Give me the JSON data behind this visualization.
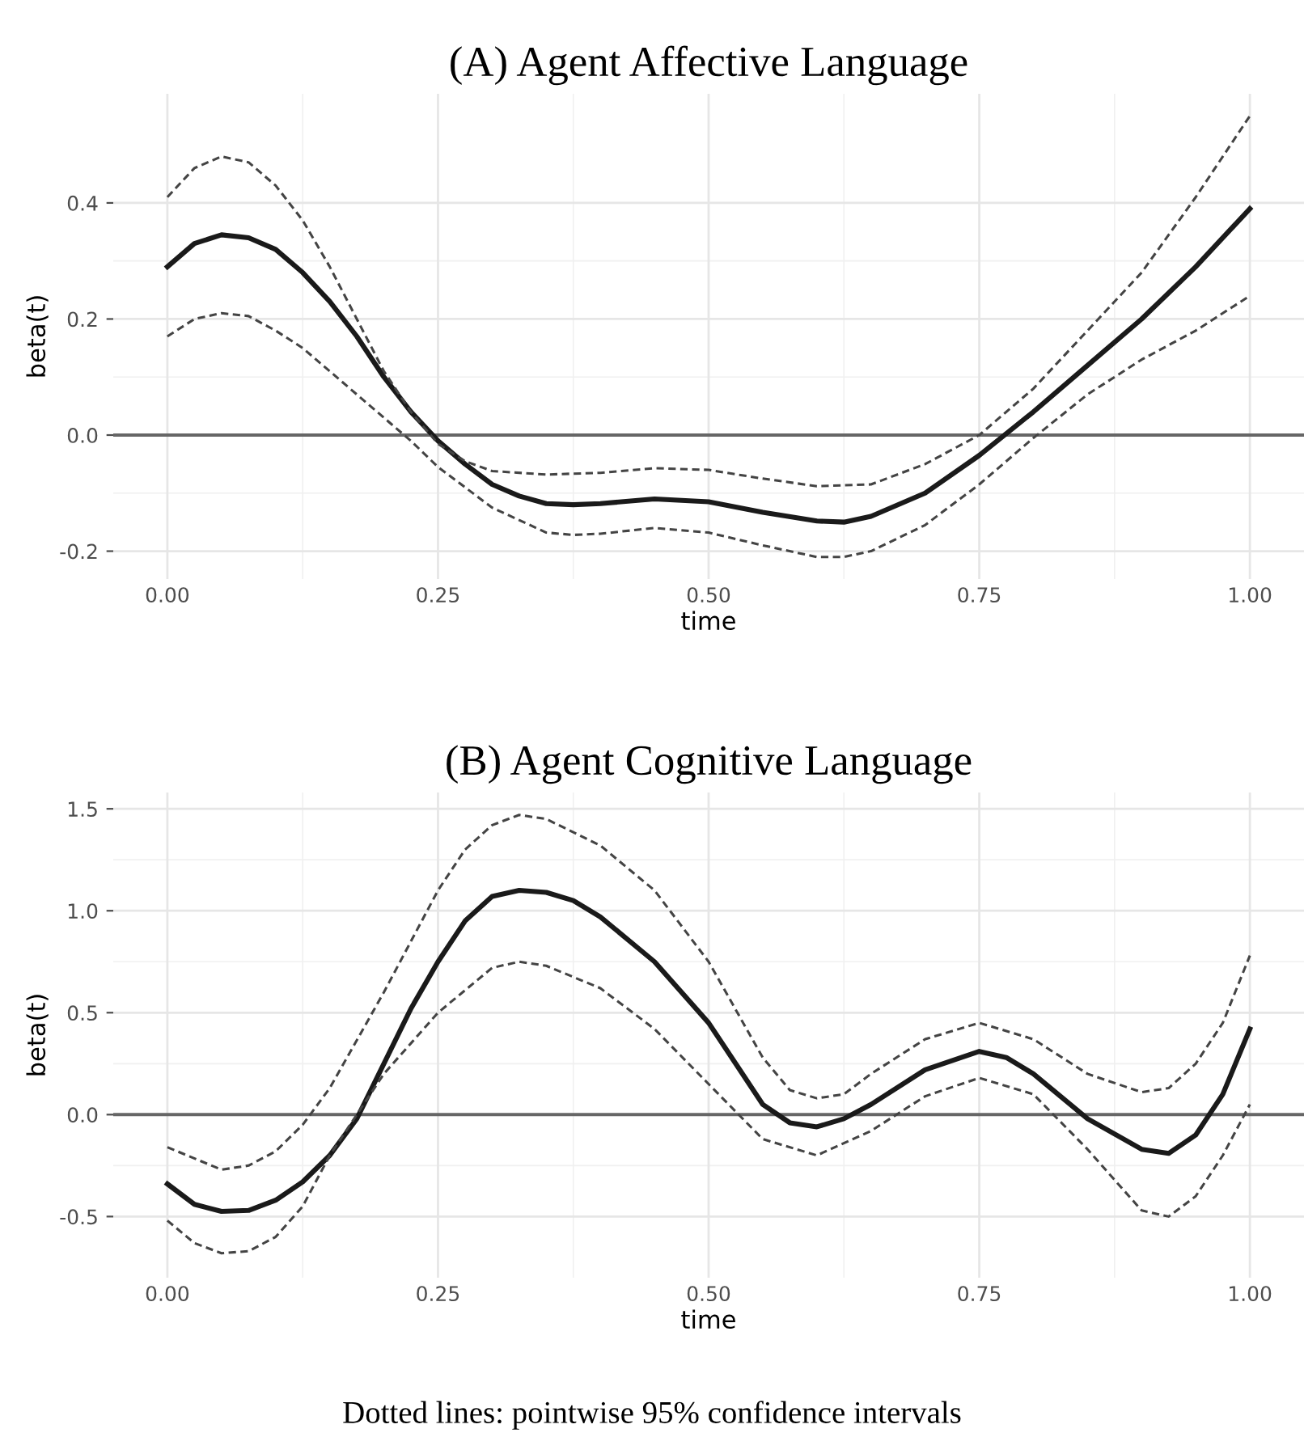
{
  "chart_data": [
    {
      "type": "line",
      "title": "(A) Agent Affective Language",
      "xlabel": "time",
      "ylabel": "beta(t)",
      "xlim": [
        -0.05,
        1.05
      ],
      "xticks": [
        {
          "value": 0,
          "label": "0.00"
        },
        {
          "value": 0.25,
          "label": "0.25"
        },
        {
          "value": 0.5,
          "label": "0.50"
        },
        {
          "value": 0.75,
          "label": "0.75"
        },
        {
          "value": 1,
          "label": "1.00"
        }
      ],
      "ylim": [
        -0.248,
        0.588
      ],
      "yticks": [
        {
          "value": -0.2,
          "label": "-0.2"
        },
        {
          "value": 0,
          "label": "0.0"
        },
        {
          "value": 0.2,
          "label": "0.2"
        },
        {
          "value": 0.4,
          "label": "0.4"
        }
      ],
      "grid": true,
      "legend": false,
      "ref_lines": [
        {
          "axis": "y",
          "value": 0,
          "color": "#666666"
        }
      ],
      "series": [
        {
          "color": "#1a1a1a",
          "line_style": "solid",
          "x": [
            0,
            0.025,
            0.05,
            0.075,
            0.1,
            0.125,
            0.15,
            0.175,
            0.2,
            0.225,
            0.25,
            0.275,
            0.3,
            0.325,
            0.35,
            0.375,
            0.4,
            0.45,
            0.5,
            0.55,
            0.6,
            0.625,
            0.65,
            0.7,
            0.75,
            0.8,
            0.85,
            0.9,
            0.95,
            1.0
          ],
          "values": [
            0.29,
            0.33,
            0.345,
            0.34,
            0.32,
            0.28,
            0.23,
            0.17,
            0.1,
            0.04,
            -0.01,
            -0.05,
            -0.085,
            -0.105,
            -0.118,
            -0.12,
            -0.118,
            -0.11,
            -0.115,
            -0.133,
            -0.148,
            -0.15,
            -0.14,
            -0.1,
            -0.035,
            0.04,
            0.12,
            0.2,
            0.29,
            0.39
          ]
        },
        {
          "color": "#444444",
          "line_style": "dashed",
          "x": [
            0,
            0.025,
            0.05,
            0.075,
            0.1,
            0.125,
            0.15,
            0.175,
            0.2,
            0.225,
            0.25,
            0.275,
            0.3,
            0.35,
            0.4,
            0.45,
            0.5,
            0.55,
            0.6,
            0.65,
            0.7,
            0.75,
            0.8,
            0.85,
            0.9,
            0.95,
            1.0
          ],
          "values": [
            0.41,
            0.46,
            0.48,
            0.47,
            0.43,
            0.37,
            0.29,
            0.2,
            0.11,
            0.04,
            -0.015,
            -0.045,
            -0.062,
            -0.068,
            -0.065,
            -0.057,
            -0.06,
            -0.075,
            -0.088,
            -0.085,
            -0.05,
            0.0,
            0.08,
            0.18,
            0.28,
            0.41,
            0.55
          ]
        },
        {
          "color": "#444444",
          "line_style": "dashed",
          "x": [
            0,
            0.025,
            0.05,
            0.075,
            0.1,
            0.125,
            0.15,
            0.2,
            0.225,
            0.25,
            0.3,
            0.35,
            0.375,
            0.4,
            0.45,
            0.5,
            0.55,
            0.6,
            0.625,
            0.65,
            0.7,
            0.75,
            0.8,
            0.85,
            0.9,
            0.95,
            1.0
          ],
          "values": [
            0.17,
            0.2,
            0.21,
            0.205,
            0.18,
            0.15,
            0.11,
            0.03,
            -0.01,
            -0.055,
            -0.125,
            -0.168,
            -0.172,
            -0.17,
            -0.16,
            -0.168,
            -0.19,
            -0.21,
            -0.21,
            -0.2,
            -0.155,
            -0.085,
            -0.005,
            0.07,
            0.13,
            0.18,
            0.24
          ]
        }
      ]
    },
    {
      "type": "line",
      "title": "(B) Agent Cognitive Language",
      "xlabel": "time",
      "ylabel": "beta(t)",
      "xlim": [
        -0.05,
        1.05
      ],
      "xticks": [
        {
          "value": 0,
          "label": "0.00"
        },
        {
          "value": 0.25,
          "label": "0.25"
        },
        {
          "value": 0.5,
          "label": "0.50"
        },
        {
          "value": 0.75,
          "label": "0.75"
        },
        {
          "value": 1,
          "label": "1.00"
        }
      ],
      "ylim": [
        -0.8,
        1.58
      ],
      "yticks": [
        {
          "value": -0.5,
          "label": "-0.5"
        },
        {
          "value": 0,
          "label": "0.0"
        },
        {
          "value": 0.5,
          "label": "0.5"
        },
        {
          "value": 1,
          "label": "1.0"
        },
        {
          "value": 1.5,
          "label": "1.5"
        }
      ],
      "grid": true,
      "legend": false,
      "ref_lines": [
        {
          "axis": "y",
          "value": 0,
          "color": "#666666"
        }
      ],
      "annotations": [
        "Dotted lines: pointwise 95% confidence intervals"
      ],
      "series": [
        {
          "color": "#1a1a1a",
          "line_style": "solid",
          "x": [
            0,
            0.025,
            0.05,
            0.075,
            0.1,
            0.125,
            0.15,
            0.175,
            0.2,
            0.225,
            0.25,
            0.275,
            0.3,
            0.325,
            0.35,
            0.375,
            0.4,
            0.45,
            0.5,
            0.525,
            0.55,
            0.575,
            0.6,
            0.625,
            0.65,
            0.7,
            0.75,
            0.775,
            0.8,
            0.85,
            0.9,
            0.925,
            0.95,
            0.975,
            1.0
          ],
          "values": [
            -0.34,
            -0.44,
            -0.475,
            -0.47,
            -0.42,
            -0.33,
            -0.2,
            -0.02,
            0.25,
            0.52,
            0.75,
            0.95,
            1.07,
            1.1,
            1.09,
            1.05,
            0.97,
            0.75,
            0.45,
            0.25,
            0.05,
            -0.04,
            -0.06,
            -0.02,
            0.05,
            0.22,
            0.31,
            0.28,
            0.2,
            -0.02,
            -0.17,
            -0.19,
            -0.1,
            0.1,
            0.42
          ]
        },
        {
          "color": "#444444",
          "line_style": "dashed",
          "x": [
            0,
            0.05,
            0.075,
            0.1,
            0.125,
            0.15,
            0.2,
            0.25,
            0.275,
            0.3,
            0.325,
            0.35,
            0.4,
            0.45,
            0.5,
            0.55,
            0.575,
            0.6,
            0.625,
            0.65,
            0.7,
            0.75,
            0.8,
            0.85,
            0.9,
            0.925,
            0.95,
            0.975,
            1.0
          ],
          "values": [
            -0.16,
            -0.27,
            -0.25,
            -0.18,
            -0.05,
            0.13,
            0.6,
            1.1,
            1.3,
            1.42,
            1.47,
            1.45,
            1.32,
            1.1,
            0.75,
            0.28,
            0.12,
            0.08,
            0.1,
            0.2,
            0.37,
            0.45,
            0.37,
            0.2,
            0.11,
            0.13,
            0.25,
            0.45,
            0.78
          ]
        },
        {
          "color": "#444444",
          "line_style": "dashed",
          "x": [
            0,
            0.025,
            0.05,
            0.075,
            0.1,
            0.125,
            0.15,
            0.2,
            0.25,
            0.3,
            0.325,
            0.35,
            0.4,
            0.45,
            0.5,
            0.55,
            0.6,
            0.65,
            0.7,
            0.75,
            0.8,
            0.85,
            0.9,
            0.925,
            0.95,
            0.975,
            1.0
          ],
          "values": [
            -0.52,
            -0.63,
            -0.68,
            -0.67,
            -0.6,
            -0.45,
            -0.2,
            0.2,
            0.5,
            0.72,
            0.75,
            0.73,
            0.62,
            0.42,
            0.15,
            -0.12,
            -0.2,
            -0.08,
            0.09,
            0.18,
            0.1,
            -0.17,
            -0.47,
            -0.5,
            -0.4,
            -0.2,
            0.05
          ]
        }
      ]
    }
  ]
}
